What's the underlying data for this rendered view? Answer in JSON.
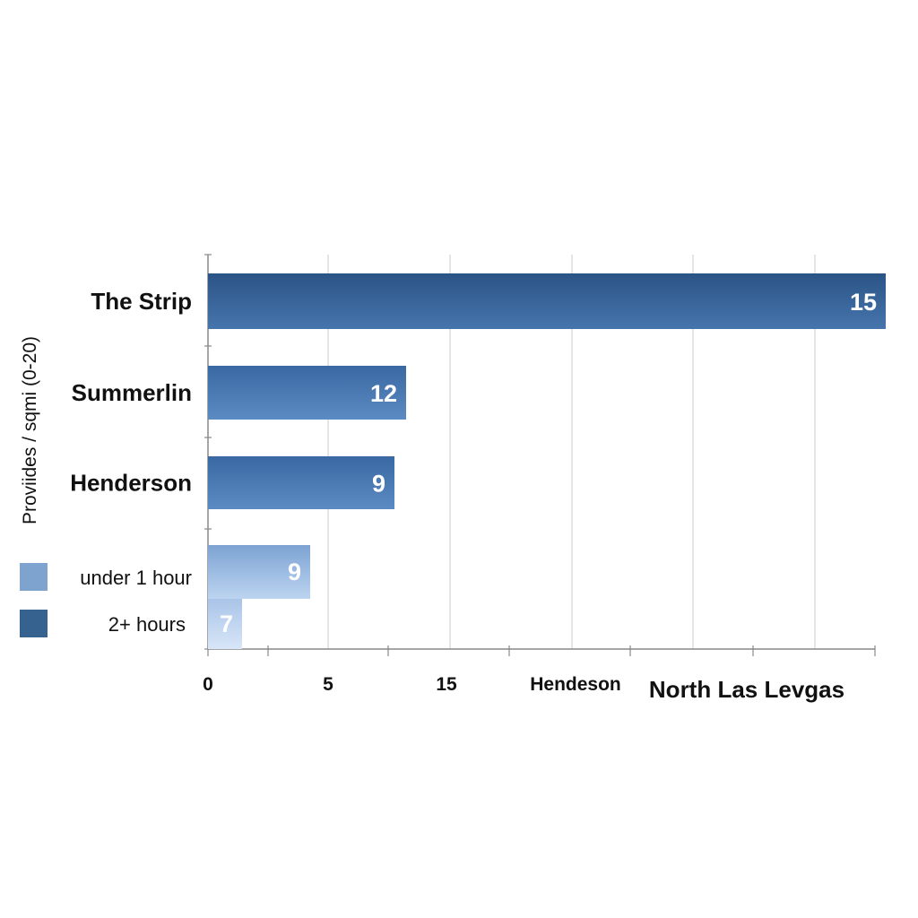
{
  "chart_data": {
    "type": "bar",
    "orientation": "horizontal",
    "title": "",
    "ylabel": "Proviides / sqmi (0-20)",
    "xlabel": "",
    "xlim": [
      0,
      15
    ],
    "categories": [
      "The Strip",
      "Summerlin",
      "Henderson"
    ],
    "values": [
      15,
      12,
      9
    ],
    "legend_bars": [
      {
        "label": "under 1 hour",
        "value": 9
      },
      {
        "label": "2+ hours",
        "value": 7
      }
    ],
    "x_tick_labels": [
      "0",
      "5",
      "15",
      "Hendeson",
      "North Las Levgas"
    ],
    "grid": true,
    "legend_position": "bottom-left",
    "colors": {
      "dark": "#2e5b8e",
      "mid": "#4a7ab3",
      "light": "#8fb2dd",
      "lighter": "#c4d9f1",
      "legend_light": "#7fa3cf",
      "legend_dark": "#35628f"
    }
  }
}
